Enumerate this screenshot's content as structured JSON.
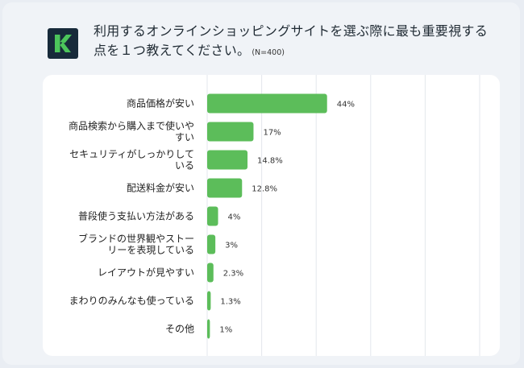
{
  "title": {
    "text": "利用するオンラインショッピングサイトを選ぶ際に最も重要視する点を１つ教えてください。",
    "note": "(N=400)"
  },
  "logo": {
    "name": "k-logo",
    "bg": "#172a3a",
    "mark": "#4cc55b"
  },
  "chart_data": {
    "type": "bar",
    "orientation": "horizontal",
    "categories": [
      [
        "商品価格が安い"
      ],
      [
        "商品検索から購入まで使いや",
        "すい"
      ],
      [
        "セキュリティがしっかりして",
        "いる"
      ],
      [
        "配送料金が安い"
      ],
      [
        "普段使う支払い方法がある"
      ],
      [
        "ブランドの世界観やストー",
        "リーを表現している"
      ],
      [
        "レイアウトが見やすい"
      ],
      [
        "まわりのみんなも使っている"
      ],
      [
        "その他"
      ]
    ],
    "values": [
      44,
      17,
      14.8,
      12.8,
      4,
      3,
      2.3,
      1.3,
      1
    ],
    "value_labels": [
      "44%",
      "17%",
      "14.8%",
      "12.8%",
      "4%",
      "3%",
      "2.3%",
      "1.3%",
      "1%"
    ],
    "xlim": [
      0,
      100
    ],
    "grid": true,
    "bar_color": "#5cbd5a",
    "grid_color": "#e3e7ec"
  }
}
